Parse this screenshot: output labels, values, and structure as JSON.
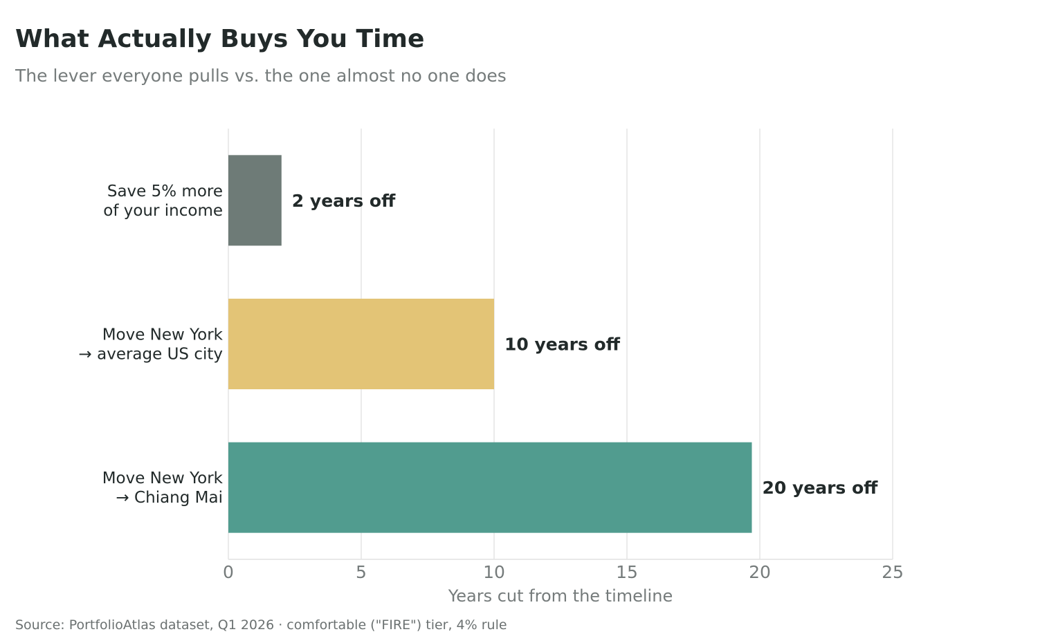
{
  "header": {
    "title": "What Actually Buys You Time",
    "subtitle": "The lever everyone pulls vs. the one almost no one does"
  },
  "footer": {
    "source": "Source: PortfolioAtlas dataset, Q1 2026  ·  comfortable (\"FIRE\") tier, 4% rule"
  },
  "chart_data": {
    "type": "bar",
    "orientation": "horizontal",
    "categories": [
      [
        "Save 5% more",
        "of your income"
      ],
      [
        "Move New York",
        "→ average US city"
      ],
      [
        "Move New York",
        "→ Chiang Mai"
      ]
    ],
    "values": [
      2,
      10,
      19.7
    ],
    "data_labels": [
      "2 years off",
      "10 years off",
      "20 years off"
    ],
    "colors": [
      "#6e7b77",
      "#e3c476",
      "#519c8f"
    ],
    "xlabel": "Years cut from the timeline",
    "xlim": [
      0,
      25
    ],
    "xticks": [
      0,
      5,
      10,
      15,
      20,
      25
    ],
    "grid": "vertical"
  }
}
